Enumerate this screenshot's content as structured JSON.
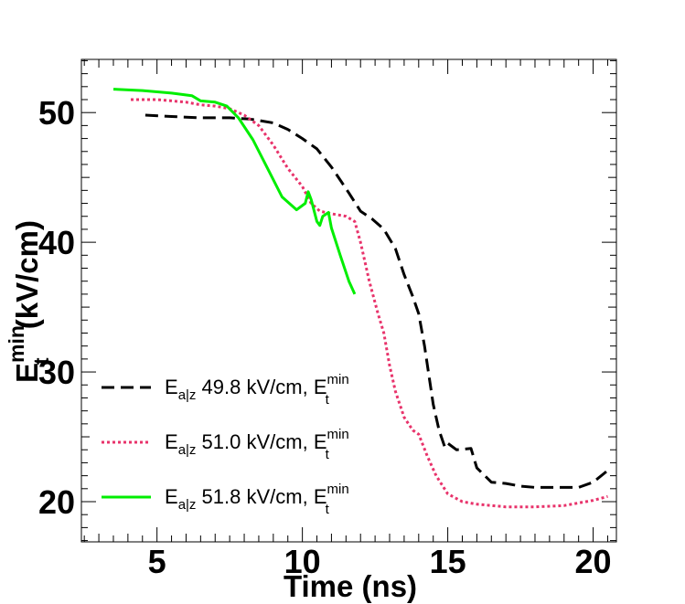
{
  "chart_data": {
    "type": "line",
    "title": "",
    "xlabel": "Time (ns)",
    "ylabel": {
      "main": "E",
      "sub": "t",
      "sup": "min",
      "unit": " (kV/cm)"
    },
    "xlim": [
      2.4,
      20.8
    ],
    "ylim": [
      16.9,
      54.1
    ],
    "xticks": [
      5,
      10,
      15,
      20
    ],
    "xtick_labels": [
      "5",
      "10",
      "15",
      "20"
    ],
    "yticks": [
      20,
      30,
      40,
      50
    ],
    "ytick_labels": [
      "20",
      "30",
      "40",
      "50"
    ],
    "grid": false,
    "legend_position": "bottom-left",
    "series": [
      {
        "name": "E_a|z 49.8 kV/cm, E_t^min",
        "legend": {
          "prefix": "E",
          "sub": "a|z",
          "mid": " 49.8 kV/cm, E",
          "sub2": "t",
          "sup2": "min"
        },
        "color": "#000000",
        "style": "dashed",
        "x": [
          4.6,
          5.5,
          6.5,
          7.5,
          8.2,
          9.0,
          9.5,
          10.0,
          10.5,
          11.0,
          11.3,
          11.6,
          12.0,
          12.4,
          12.8,
          13.2,
          13.5,
          13.8,
          14.0,
          14.2,
          14.5,
          14.7,
          14.9,
          15.0,
          15.3,
          15.8,
          16.0,
          16.5,
          17.0,
          17.5,
          18.0,
          19.0,
          19.5,
          20.0,
          20.5
        ],
        "y": [
          49.8,
          49.7,
          49.6,
          49.6,
          49.5,
          49.2,
          48.7,
          48.0,
          47.2,
          45.8,
          44.8,
          43.8,
          42.4,
          41.8,
          41.0,
          39.5,
          37.5,
          35.8,
          34.5,
          32.0,
          27.5,
          25.5,
          24.2,
          24.5,
          24.0,
          24.1,
          22.6,
          21.5,
          21.4,
          21.2,
          21.1,
          21.1,
          21.1,
          21.5,
          22.4
        ]
      },
      {
        "name": "E_a|z 51.0 kV/cm, E_t^min",
        "legend": {
          "prefix": "E",
          "sub": "a|z",
          "mid": " 51.0 kV/cm, E",
          "sub2": "t",
          "sup2": "min"
        },
        "color": "#e8336b",
        "style": "dotted",
        "x": [
          4.1,
          5.0,
          5.5,
          6.0,
          6.5,
          7.0,
          7.5,
          8.0,
          8.5,
          9.0,
          9.5,
          10.0,
          10.3,
          10.6,
          11.0,
          11.5,
          11.8,
          12.0,
          12.3,
          12.6,
          12.8,
          13.0,
          13.2,
          13.5,
          13.8,
          14.0,
          14.3,
          14.6,
          15.0,
          15.5,
          16.0,
          17.0,
          18.0,
          19.0,
          19.5,
          20.0,
          20.5
        ],
        "y": [
          51.0,
          51.0,
          50.9,
          50.8,
          50.6,
          50.5,
          50.3,
          49.8,
          49.0,
          47.5,
          45.7,
          44.3,
          43.0,
          42.4,
          42.2,
          42.0,
          41.6,
          40.0,
          37.0,
          34.5,
          33.0,
          30.5,
          28.5,
          26.5,
          25.5,
          25.2,
          23.5,
          22.0,
          20.6,
          20.0,
          19.8,
          19.6,
          19.6,
          19.7,
          19.9,
          20.1,
          20.4
        ]
      },
      {
        "name": "E_a|z 51.8 kV/cm, E_t^min",
        "legend": {
          "prefix": "E",
          "sub": "a|z",
          "mid": " 51.8 kV/cm, E",
          "sub2": "t",
          "sup2": "min"
        },
        "color": "#00ee00",
        "style": "solid",
        "x": [
          3.5,
          4.5,
          5.5,
          6.2,
          6.5,
          7.0,
          7.4,
          7.8,
          8.3,
          8.8,
          9.3,
          9.8,
          10.1,
          10.2,
          10.3,
          10.5,
          10.6,
          10.7,
          10.9,
          11.0,
          11.3,
          11.6,
          11.8
        ],
        "y": [
          51.8,
          51.7,
          51.5,
          51.3,
          50.9,
          50.8,
          50.5,
          49.6,
          47.9,
          45.7,
          43.5,
          42.5,
          43.0,
          43.9,
          43.3,
          41.6,
          41.3,
          42.0,
          42.3,
          41.1,
          39.0,
          37.0,
          36.0
        ]
      }
    ]
  }
}
